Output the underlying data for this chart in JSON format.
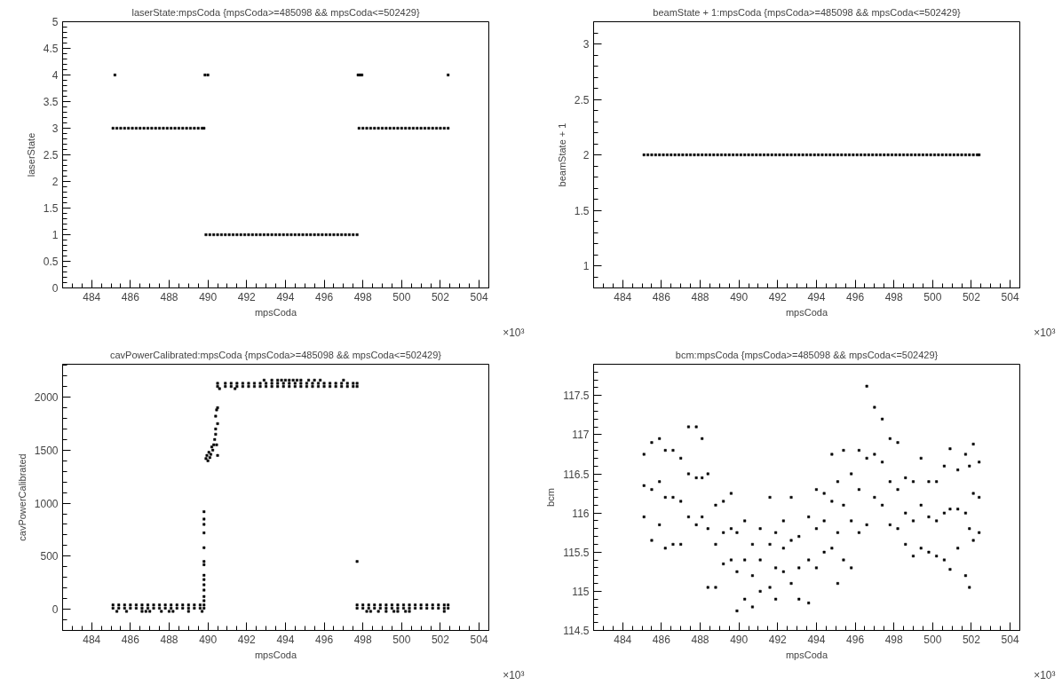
{
  "chart_data": [
    {
      "type": "scatter",
      "title": "laserState:mpsCoda {mpsCoda>=485098 && mpsCoda<=502429}",
      "xlabel": "mpsCoda",
      "ylabel": "laserState",
      "annotations": [
        "×10³"
      ],
      "marker": "square",
      "xlim": [
        482.5,
        504.5
      ],
      "xticks": [
        484,
        486,
        488,
        490,
        492,
        494,
        496,
        498,
        500,
        502,
        504
      ],
      "ylim": [
        0,
        5
      ],
      "yticks": [
        0,
        0.5,
        1,
        1.5,
        2,
        2.5,
        3,
        3.5,
        4,
        4.5,
        5
      ],
      "series": [
        {
          "color": "#000000",
          "x": [
            485.1,
            485.3,
            485.5,
            485.7,
            485.9,
            486.1,
            486.3,
            486.5,
            486.7,
            486.9,
            487.1,
            487.3,
            487.5,
            487.7,
            487.9,
            488.1,
            488.3,
            488.5,
            488.7,
            488.9,
            489.1,
            489.3,
            489.5,
            489.7,
            489.8
          ],
          "values": [
            3,
            3,
            3,
            3,
            3,
            3,
            3,
            3,
            3,
            3,
            3,
            3,
            3,
            3,
            3,
            3,
            3,
            3,
            3,
            3,
            3,
            3,
            3,
            3,
            3
          ]
        },
        {
          "color": "#000000",
          "x": [
            489.9,
            490.1,
            490.3,
            490.5,
            490.7,
            490.9,
            491.1,
            491.3,
            491.5,
            491.7,
            491.9,
            492.1,
            492.3,
            492.5,
            492.7,
            492.9,
            493.1,
            493.3,
            493.5,
            493.7,
            493.9,
            494.1,
            494.3,
            494.5,
            494.7,
            494.9,
            495.1,
            495.3,
            495.5,
            495.7,
            495.9,
            496.1,
            496.3,
            496.5,
            496.7,
            496.9,
            497.1,
            497.3,
            497.5,
            497.7
          ],
          "values": [
            1,
            1,
            1,
            1,
            1,
            1,
            1,
            1,
            1,
            1,
            1,
            1,
            1,
            1,
            1,
            1,
            1,
            1,
            1,
            1,
            1,
            1,
            1,
            1,
            1,
            1,
            1,
            1,
            1,
            1,
            1,
            1,
            1,
            1,
            1,
            1,
            1,
            1,
            1,
            1
          ]
        },
        {
          "color": "#000000",
          "x": [
            497.8,
            498.0,
            498.2,
            498.4,
            498.6,
            498.8,
            499.0,
            499.2,
            499.4,
            499.6,
            499.8,
            500.0,
            500.2,
            500.4,
            500.6,
            500.8,
            501.0,
            501.2,
            501.4,
            501.6,
            501.8,
            502.0,
            502.2,
            502.4
          ],
          "values": [
            3,
            3,
            3,
            3,
            3,
            3,
            3,
            3,
            3,
            3,
            3,
            3,
            3,
            3,
            3,
            3,
            3,
            3,
            3,
            3,
            3,
            3,
            3,
            3
          ]
        },
        {
          "color": "#000000",
          "x": [
            485.2,
            489.85,
            490.0,
            497.75,
            497.85,
            497.95,
            502.4
          ],
          "values": [
            4,
            4,
            4,
            4,
            4,
            4,
            4
          ]
        }
      ]
    },
    {
      "type": "scatter",
      "title": "beamState + 1:mpsCoda {mpsCoda>=485098 && mpsCoda<=502429}",
      "xlabel": "mpsCoda",
      "ylabel": "beamState + 1",
      "annotations": [
        "×10³"
      ],
      "marker": "square",
      "xlim": [
        482.5,
        504.5
      ],
      "xticks": [
        484,
        486,
        488,
        490,
        492,
        494,
        496,
        498,
        500,
        502,
        504
      ],
      "ylim": [
        0.8,
        3.2
      ],
      "yticks": [
        1,
        1.5,
        2,
        2.5,
        3
      ],
      "series": [
        {
          "color": "#000000",
          "x": [
            485.1,
            485.3,
            485.5,
            485.7,
            485.9,
            486.1,
            486.3,
            486.5,
            486.7,
            486.9,
            487.1,
            487.3,
            487.5,
            487.7,
            487.9,
            488.1,
            488.3,
            488.5,
            488.7,
            488.9,
            489.1,
            489.3,
            489.5,
            489.7
          ],
          "values": [
            2,
            2,
            2,
            2,
            2,
            2,
            2,
            2,
            2,
            2,
            2,
            2,
            2,
            2,
            2,
            2,
            2,
            2,
            2,
            2,
            2,
            2,
            2,
            2
          ]
        },
        {
          "color": "#000000",
          "x": [
            489.9,
            490.1,
            490.3,
            490.5,
            490.7,
            490.9,
            491.1,
            491.3,
            491.5,
            491.7,
            491.9,
            492.1,
            492.3,
            492.5,
            492.7,
            492.9,
            493.1,
            493.3,
            493.5,
            493.7,
            493.9,
            494.1,
            494.3,
            494.5,
            494.7,
            494.9,
            495.1,
            495.3,
            495.5,
            495.7,
            495.9,
            496.1,
            496.3,
            496.5,
            496.7,
            496.9,
            497.1,
            497.3,
            497.5,
            497.7
          ],
          "values": [
            2,
            2,
            2,
            2,
            2,
            2,
            2,
            2,
            2,
            2,
            2,
            2,
            2,
            2,
            2,
            2,
            2,
            2,
            2,
            2,
            2,
            2,
            2,
            2,
            2,
            2,
            2,
            2,
            2,
            2,
            2,
            2,
            2,
            2,
            2,
            2,
            2,
            2,
            2,
            2
          ]
        },
        {
          "color": "#000000",
          "x": [
            497.9,
            498.1,
            498.3,
            498.5,
            498.7,
            498.9,
            499.1,
            499.3,
            499.5,
            499.7,
            499.9,
            500.1,
            500.3,
            500.5,
            500.7,
            500.9,
            501.1,
            501.3,
            501.5,
            501.7,
            501.9,
            502.1,
            502.3,
            502.4
          ],
          "values": [
            2,
            2,
            2,
            2,
            2,
            2,
            2,
            2,
            2,
            2,
            2,
            2,
            2,
            2,
            2,
            2,
            2,
            2,
            2,
            2,
            2,
            2,
            2,
            2
          ]
        }
      ]
    },
    {
      "type": "scatter",
      "title": "cavPowerCalibrated:mpsCoda {mpsCoda>=485098 && mpsCoda<=502429}",
      "xlabel": "mpsCoda",
      "ylabel": "cavPowerCalibrated",
      "annotations": [
        "×10³"
      ],
      "marker": "square",
      "xlim": [
        482.5,
        504.5
      ],
      "xticks": [
        484,
        486,
        488,
        490,
        492,
        494,
        496,
        498,
        500,
        502,
        504
      ],
      "ylim": [
        -200,
        2310
      ],
      "yticks": [
        0,
        500,
        1000,
        1500,
        2000
      ],
      "series": [
        {
          "color": "#000000",
          "x": [
            485.1,
            485.4,
            485.7,
            486.0,
            486.3,
            486.6,
            486.9,
            487.2,
            487.5,
            487.8,
            488.1,
            488.4,
            488.7,
            489.0,
            489.3,
            489.6,
            489.8,
            497.7,
            498.0,
            498.3,
            498.6,
            498.9,
            499.2,
            499.5,
            499.8,
            500.1,
            500.4,
            500.7,
            501.0,
            501.3,
            501.6,
            501.9,
            502.2,
            502.4
          ],
          "values": [
            40,
            40,
            40,
            40,
            40,
            40,
            40,
            40,
            40,
            40,
            40,
            40,
            40,
            40,
            40,
            40,
            40,
            40,
            40,
            40,
            40,
            40,
            40,
            40,
            40,
            40,
            40,
            40,
            40,
            40,
            40,
            40,
            40,
            40
          ]
        },
        {
          "color": "#000000",
          "x": [
            485.1,
            485.4,
            485.7,
            486.0,
            486.3,
            486.6,
            486.9,
            487.2,
            487.5,
            487.8,
            488.1,
            488.4,
            488.7,
            489.0,
            489.3,
            489.6,
            489.8,
            497.7,
            498.0,
            498.3,
            498.6,
            498.9,
            499.2,
            499.5,
            499.8,
            500.1,
            500.4,
            500.7,
            501.0,
            501.3,
            501.6,
            501.9,
            502.2,
            502.4
          ],
          "values": [
            10,
            10,
            10,
            10,
            10,
            10,
            10,
            10,
            10,
            10,
            10,
            10,
            10,
            10,
            10,
            10,
            10,
            10,
            10,
            10,
            10,
            10,
            10,
            10,
            10,
            10,
            10,
            10,
            10,
            10,
            10,
            10,
            10,
            10
          ]
        },
        {
          "color": "#000000",
          "x": [
            485.3,
            485.8,
            486.6,
            486.8,
            487.0,
            487.6,
            488.0,
            488.2,
            489.0,
            489.7,
            498.2,
            498.4,
            498.8,
            499.2,
            499.6,
            499.8,
            500.2,
            500.4,
            502.2
          ],
          "values": [
            -20,
            -20,
            -20,
            -20,
            -20,
            -20,
            -20,
            -20,
            -20,
            -20,
            -20,
            -20,
            -20,
            -20,
            -20,
            -20,
            -20,
            -20,
            -20
          ]
        },
        {
          "color": "#000000",
          "x": [
            489.8,
            489.8,
            489.8,
            489.8,
            489.8,
            489.8,
            489.8,
            489.8,
            489.8,
            489.8,
            489.8,
            489.8,
            489.8,
            489.9,
            489.95,
            490.0,
            490.05,
            490.1,
            490.15,
            490.2,
            490.25,
            490.3,
            490.35,
            490.4,
            490.4,
            490.4,
            490.45,
            490.45,
            490.5,
            490.5,
            490.5,
            497.7
          ],
          "values": [
            920,
            850,
            800,
            720,
            580,
            450,
            420,
            320,
            280,
            230,
            180,
            120,
            80,
            1420,
            1450,
            1400,
            1480,
            1430,
            1460,
            1530,
            1500,
            1550,
            1600,
            1820,
            1650,
            1700,
            1880,
            1550,
            1750,
            1900,
            1450,
            450
          ]
        },
        {
          "color": "#000000",
          "x": [
            490.5,
            490.9,
            491.2,
            491.5,
            491.8,
            492.1,
            492.4,
            492.7,
            493.0,
            493.3,
            493.6,
            493.9,
            494.2,
            494.5,
            494.8,
            495.1,
            495.4,
            495.7,
            496.0,
            496.3,
            496.6,
            496.9,
            497.2,
            497.5,
            497.7
          ],
          "values": [
            2130,
            2130,
            2130,
            2130,
            2130,
            2130,
            2130,
            2130,
            2130,
            2130,
            2130,
            2130,
            2130,
            2130,
            2130,
            2130,
            2130,
            2130,
            2130,
            2130,
            2130,
            2130,
            2130,
            2130,
            2130
          ]
        },
        {
          "color": "#000000",
          "x": [
            490.5,
            490.9,
            491.2,
            491.5,
            491.8,
            492.1,
            492.4,
            492.7,
            493.0,
            493.3,
            493.6,
            493.9,
            494.2,
            494.5,
            494.8,
            495.1,
            495.4,
            495.7,
            496.0,
            496.3,
            496.6,
            496.9,
            497.2,
            497.5,
            497.7
          ],
          "values": [
            2100,
            2100,
            2100,
            2100,
            2100,
            2100,
            2100,
            2100,
            2100,
            2100,
            2100,
            2100,
            2100,
            2100,
            2100,
            2100,
            2100,
            2100,
            2100,
            2100,
            2100,
            2100,
            2100,
            2100,
            2100
          ]
        },
        {
          "color": "#000000",
          "x": [
            492.9,
            493.3,
            493.6,
            493.8,
            494.0,
            494.2,
            494.4,
            494.6,
            494.8,
            495.2,
            495.5,
            495.8,
            497.0,
            490.6,
            491.4
          ],
          "values": [
            2160,
            2160,
            2160,
            2160,
            2160,
            2160,
            2160,
            2160,
            2160,
            2160,
            2160,
            2160,
            2160,
            2080,
            2080
          ]
        }
      ]
    },
    {
      "type": "scatter",
      "title": "bcm:mpsCoda {mpsCoda>=485098 && mpsCoda<=502429}",
      "xlabel": "mpsCoda",
      "ylabel": "bcm",
      "annotations": [
        "×10³"
      ],
      "marker": "square",
      "xlim": [
        482.5,
        504.5
      ],
      "xticks": [
        484,
        486,
        488,
        490,
        492,
        494,
        496,
        498,
        500,
        502,
        504
      ],
      "ylim": [
        114.5,
        117.9
      ],
      "yticks": [
        114.5,
        115,
        115.5,
        116,
        116.5,
        117,
        117.5
      ],
      "x": [
        485.1,
        485.5,
        485.9,
        486.2,
        486.6,
        487.0,
        487.4,
        487.8,
        488.1,
        488.4,
        488.8,
        489.2,
        489.6,
        489.9,
        490.3,
        490.7,
        491.1,
        491.6,
        491.9,
        492.3,
        492.7,
        493.1,
        493.6,
        494.0,
        494.4,
        494.8,
        495.1,
        495.4,
        495.8,
        496.2,
        496.6,
        497.0,
        497.4,
        497.8,
        498.2,
        498.6,
        499.0,
        499.4,
        499.8,
        500.2,
        500.6,
        500.9,
        501.3,
        501.7,
        501.9,
        502.1,
        502.4
      ],
      "series": [
        {
          "color": "#000000",
          "values": [
            116.75,
            116.9,
            116.95,
            116.8,
            116.8,
            116.7,
            117.1,
            117.1,
            116.95,
            116.5,
            116.1,
            116.15,
            116.25,
            115.75,
            115.9,
            115.6,
            115.8,
            116.2,
            115.75,
            115.9,
            116.2,
            115.7,
            115.95,
            116.3,
            116.25,
            116.75,
            116.4,
            116.8,
            116.5,
            116.8,
            117.62,
            117.35,
            117.2,
            116.95,
            116.9,
            116.45,
            116.4,
            116.7,
            116.4,
            116.4,
            116.6,
            116.82,
            116.55,
            116.75,
            116.6,
            116.88,
            116.65
          ]
        },
        {
          "color": "#000000",
          "values": [
            116.35,
            116.3,
            116.4,
            116.2,
            116.2,
            116.15,
            116.5,
            116.45,
            116.45,
            115.8,
            115.6,
            115.75,
            115.8,
            115.25,
            115.4,
            115.2,
            115.4,
            115.6,
            115.3,
            115.55,
            115.65,
            115.3,
            115.4,
            115.8,
            115.9,
            116.15,
            115.75,
            116.1,
            115.9,
            116.3,
            116.7,
            116.75,
            116.65,
            116.4,
            116.3,
            116.0,
            115.9,
            116.1,
            115.95,
            115.9,
            116.0,
            116.05,
            116.05,
            116.0,
            115.8,
            116.25,
            116.2
          ]
        },
        {
          "color": "#000000",
          "values": [
            115.95,
            115.65,
            115.85,
            115.55,
            115.6,
            115.6,
            115.95,
            115.85,
            115.95,
            115.05,
            115.05,
            115.35,
            115.4,
            114.75,
            114.9,
            114.8,
            115.0,
            115.05,
            114.9,
            115.25,
            115.1,
            114.9,
            114.85,
            115.3,
            115.5,
            115.55,
            115.1,
            115.4,
            115.3,
            115.75,
            115.85,
            116.2,
            116.1,
            115.85,
            115.8,
            115.6,
            115.45,
            115.55,
            115.5,
            115.45,
            115.4,
            115.28,
            115.55,
            115.2,
            115.05,
            115.65,
            115.75
          ]
        }
      ]
    }
  ]
}
